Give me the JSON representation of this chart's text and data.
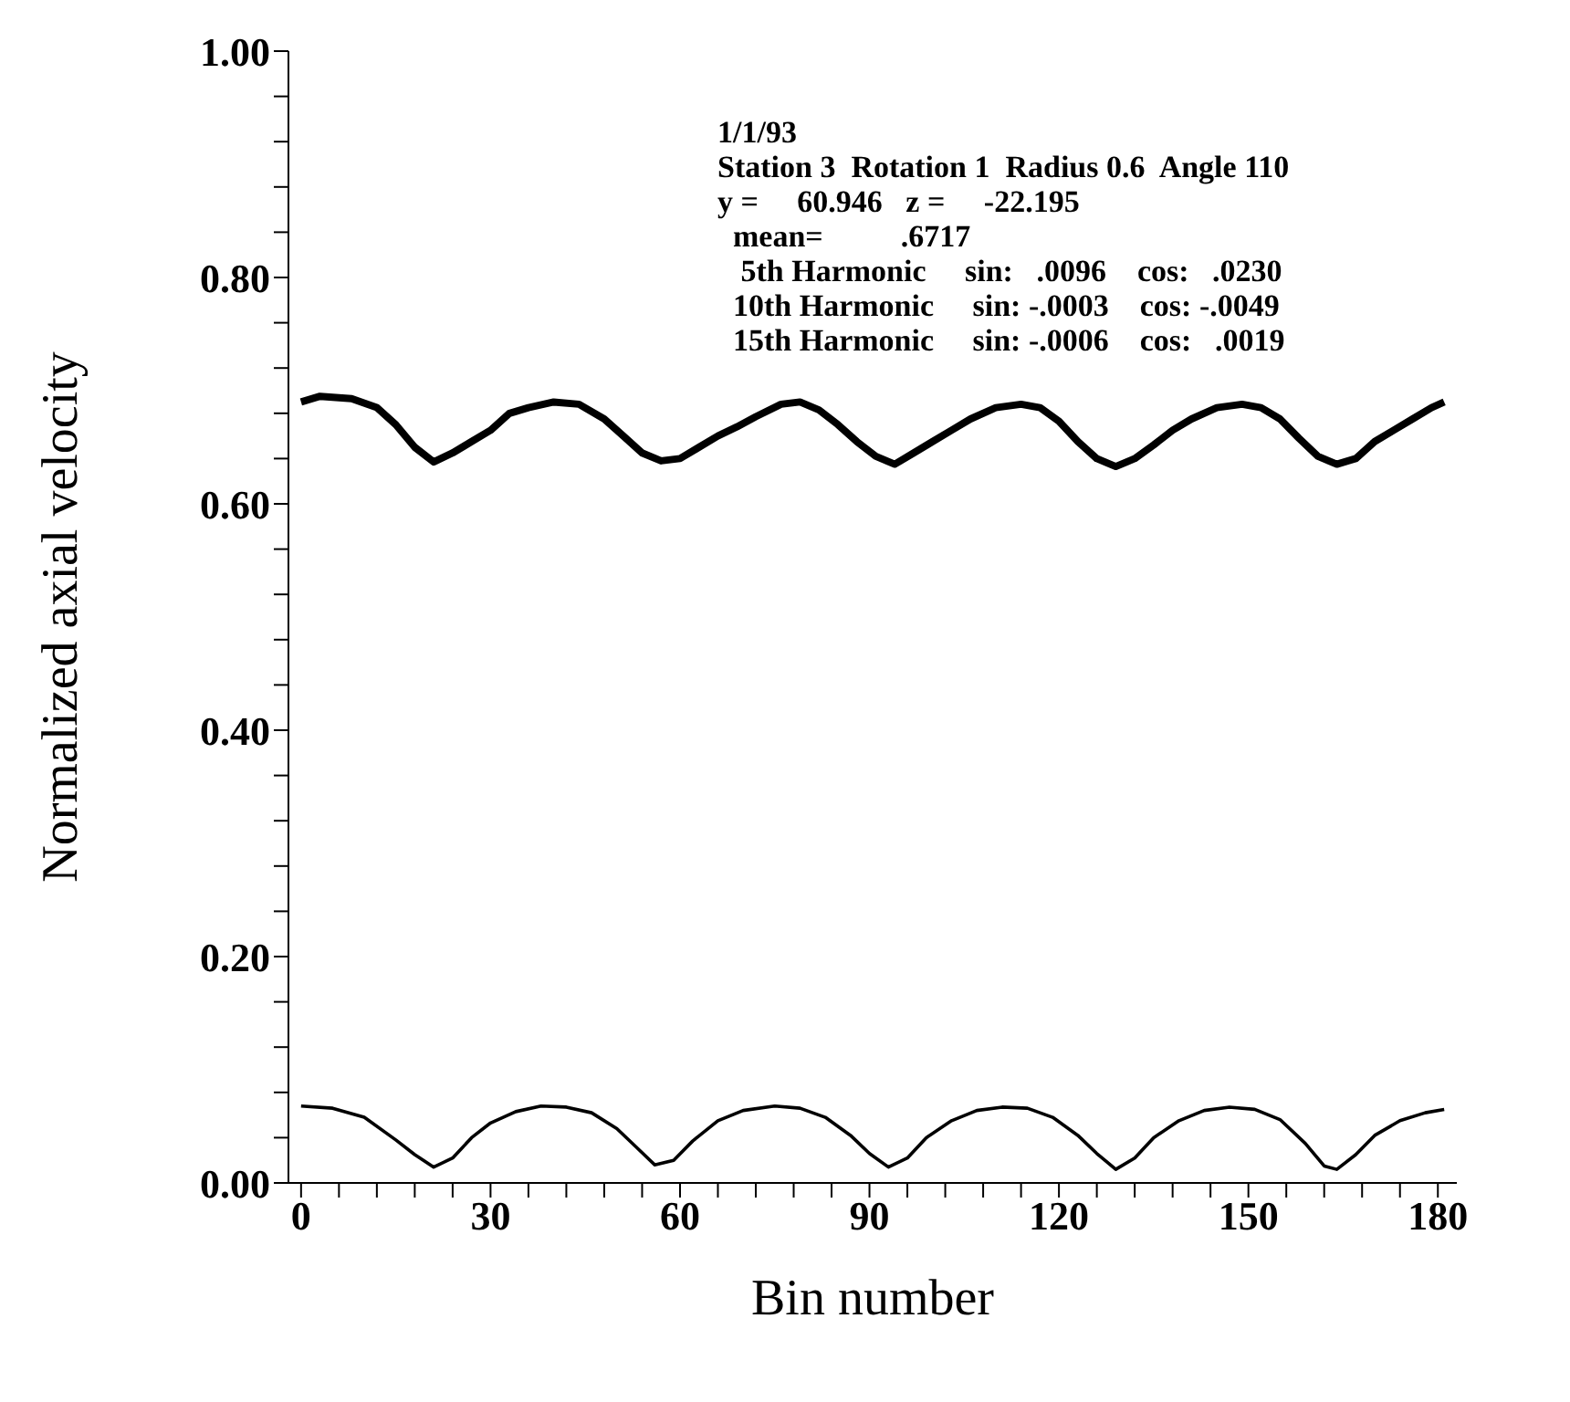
{
  "chart_data": {
    "type": "line",
    "xlabel": "Bin number",
    "ylabel": "Normalized axial velocity",
    "annotations": [
      "1/1/93",
      "Station 3  Rotation 1  Radius 0.6  Angle 110",
      "y =     60.946   z =     -22.195",
      "  mean=          .6717",
      "   5th Harmonic     sin:   .0096    cos:   .0230",
      "  10th Harmonic     sin: -.0003    cos: -.0049",
      "  15th Harmonic     sin: -.0006    cos:   .0019"
    ],
    "xlim": [
      -2,
      183
    ],
    "xticks": [
      0,
      {
        "value": 6,
        "label": null
      },
      {
        "value": 12,
        "label": null
      },
      {
        "value": 18,
        "label": null
      },
      {
        "value": 24,
        "label": null
      },
      30,
      {
        "value": 36,
        "label": null
      },
      {
        "value": 42,
        "label": null
      },
      {
        "value": 48,
        "label": null
      },
      {
        "value": 54,
        "label": null
      },
      60,
      {
        "value": 66,
        "label": null
      },
      {
        "value": 72,
        "label": null
      },
      {
        "value": 78,
        "label": null
      },
      {
        "value": 84,
        "label": null
      },
      90,
      {
        "value": 96,
        "label": null
      },
      {
        "value": 102,
        "label": null
      },
      {
        "value": 108,
        "label": null
      },
      {
        "value": 114,
        "label": null
      },
      120,
      {
        "value": 126,
        "label": null
      },
      {
        "value": 132,
        "label": null
      },
      {
        "value": 138,
        "label": null
      },
      {
        "value": 144,
        "label": null
      },
      150,
      {
        "value": 156,
        "label": null
      },
      {
        "value": 162,
        "label": null
      },
      {
        "value": 168,
        "label": null
      },
      {
        "value": 174,
        "label": null
      },
      180
    ],
    "ylim": [
      0,
      1
    ],
    "yticks": [
      {
        "value": 0,
        "label": "0.00"
      },
      {
        "value": 0.04,
        "label": null
      },
      {
        "value": 0.08,
        "label": null
      },
      {
        "value": 0.12,
        "label": null
      },
      {
        "value": 0.16,
        "label": null
      },
      {
        "value": 0.2,
        "label": "0.20"
      },
      {
        "value": 0.24,
        "label": null
      },
      {
        "value": 0.28,
        "label": null
      },
      {
        "value": 0.32,
        "label": null
      },
      {
        "value": 0.36,
        "label": null
      },
      {
        "value": 0.4,
        "label": "0.40"
      },
      {
        "value": 0.44,
        "label": null
      },
      {
        "value": 0.48,
        "label": null
      },
      {
        "value": 0.52,
        "label": null
      },
      {
        "value": 0.56,
        "label": null
      },
      {
        "value": 0.6,
        "label": "0.60"
      },
      {
        "value": 0.64,
        "label": null
      },
      {
        "value": 0.68,
        "label": null
      },
      {
        "value": 0.72,
        "label": null
      },
      {
        "value": 0.76,
        "label": null
      },
      {
        "value": 0.8,
        "label": "0.80"
      },
      {
        "value": 0.84,
        "label": null
      },
      {
        "value": 0.88,
        "label": null
      },
      {
        "value": 0.92,
        "label": null
      },
      {
        "value": 0.96,
        "label": null
      },
      {
        "value": 1,
        "label": "1.00"
      }
    ],
    "marker": "none",
    "line_style": "solid",
    "series": [
      {
        "color": "#000000",
        "x": [
          0,
          3,
          8,
          12,
          15,
          18,
          21,
          24,
          27,
          30,
          33,
          36,
          40,
          44,
          48,
          51,
          54,
          57,
          60,
          63,
          66,
          69,
          72,
          76,
          79,
          82,
          85,
          88,
          91,
          94,
          97,
          100,
          103,
          106,
          110,
          114,
          117,
          120,
          123,
          126,
          129,
          132,
          135,
          138,
          141,
          145,
          149,
          152,
          155,
          158,
          161,
          164,
          167,
          170,
          173,
          176,
          179,
          181
        ],
        "values": [
          0.69,
          0.695,
          0.693,
          0.685,
          0.67,
          0.65,
          0.637,
          0.645,
          0.655,
          0.665,
          0.68,
          0.685,
          0.69,
          0.688,
          0.675,
          0.66,
          0.645,
          0.638,
          0.64,
          0.65,
          0.66,
          0.668,
          0.677,
          0.688,
          0.69,
          0.683,
          0.67,
          0.655,
          0.642,
          0.635,
          0.645,
          0.655,
          0.665,
          0.675,
          0.685,
          0.688,
          0.685,
          0.673,
          0.655,
          0.64,
          0.633,
          0.64,
          0.652,
          0.665,
          0.675,
          0.685,
          0.688,
          0.685,
          0.675,
          0.658,
          0.642,
          0.635,
          0.64,
          0.655,
          0.665,
          0.675,
          0.685,
          0.69
        ]
      },
      {
        "color": "#000000",
        "x": [
          0,
          5,
          10,
          15,
          18,
          21,
          24,
          27,
          30,
          34,
          38,
          42,
          46,
          50,
          53,
          56,
          59,
          62,
          66,
          70,
          75,
          79,
          83,
          87,
          90,
          93,
          96,
          99,
          103,
          107,
          111,
          115,
          119,
          123,
          126,
          129,
          132,
          135,
          139,
          143,
          147,
          151,
          155,
          159,
          162,
          164,
          167,
          170,
          174,
          178,
          181
        ],
        "values": [
          0.068,
          0.066,
          0.058,
          0.038,
          0.025,
          0.014,
          0.022,
          0.04,
          0.053,
          0.063,
          0.068,
          0.067,
          0.062,
          0.048,
          0.032,
          0.016,
          0.02,
          0.037,
          0.055,
          0.064,
          0.068,
          0.066,
          0.058,
          0.042,
          0.026,
          0.014,
          0.022,
          0.04,
          0.055,
          0.064,
          0.067,
          0.066,
          0.058,
          0.042,
          0.026,
          0.012,
          0.022,
          0.04,
          0.055,
          0.064,
          0.067,
          0.065,
          0.056,
          0.035,
          0.015,
          0.012,
          0.025,
          0.042,
          0.055,
          0.062,
          0.065
        ]
      }
    ]
  }
}
